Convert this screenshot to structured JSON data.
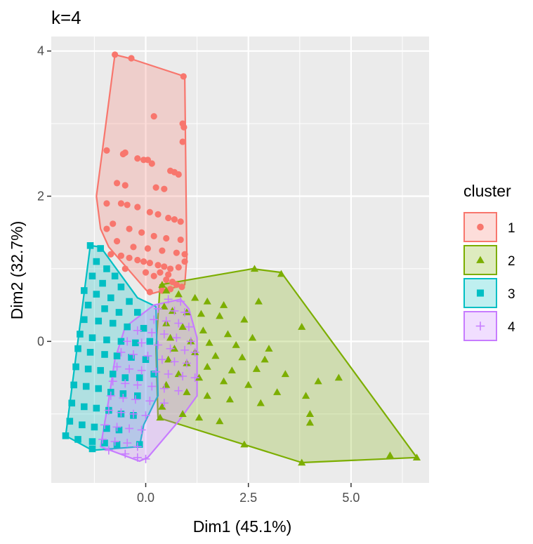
{
  "chart_data": {
    "type": "scatter",
    "title": "k=4",
    "xlabel": "Dim1 (45.1%)",
    "ylabel": "Dim2 (32.7%)",
    "xlim": [
      -2.3,
      6.9
    ],
    "ylim": [
      -1.95,
      4.2
    ],
    "x_ticks": [
      0.0,
      2.5,
      5.0
    ],
    "x_tick_labels": [
      "0.0",
      "2.5",
      "5.0"
    ],
    "y_ticks": [
      0,
      2,
      4
    ],
    "y_tick_labels": [
      "0",
      "2",
      "4"
    ],
    "grid": true,
    "background": "#ebebeb",
    "legend": {
      "title": "cluster",
      "position": "right"
    },
    "series": [
      {
        "name": "1",
        "color": "#f8766d",
        "marker": "circle",
        "hull": [
          [
            -0.75,
            3.95
          ],
          [
            -0.4,
            3.9
          ],
          [
            0.95,
            3.65
          ],
          [
            1.0,
            1.15
          ],
          [
            0.95,
            0.78
          ],
          [
            0.1,
            0.65
          ],
          [
            -0.9,
            1.3
          ],
          [
            -1.1,
            1.55
          ],
          [
            -1.2,
            2.0
          ],
          [
            -1.05,
            2.65
          ]
        ],
        "points": [
          [
            -0.75,
            3.95
          ],
          [
            -0.35,
            3.9
          ],
          [
            0.92,
            3.65
          ],
          [
            0.2,
            3.1
          ],
          [
            0.9,
            3.0
          ],
          [
            0.93,
            2.95
          ],
          [
            -0.5,
            2.6
          ],
          [
            -0.55,
            2.58
          ],
          [
            -0.2,
            2.52
          ],
          [
            -0.05,
            2.5
          ],
          [
            0.05,
            2.5
          ],
          [
            0.15,
            2.45
          ],
          [
            0.6,
            2.35
          ],
          [
            0.7,
            2.33
          ],
          [
            0.8,
            2.3
          ],
          [
            -0.95,
            2.63
          ],
          [
            0.9,
            2.75
          ],
          [
            -0.7,
            2.18
          ],
          [
            -0.5,
            2.15
          ],
          [
            0.25,
            2.12
          ],
          [
            0.45,
            2.1
          ],
          [
            -0.6,
            1.9
          ],
          [
            -0.45,
            1.88
          ],
          [
            -0.2,
            1.85
          ],
          [
            0.1,
            1.78
          ],
          [
            0.3,
            1.75
          ],
          [
            0.55,
            1.7
          ],
          [
            0.7,
            1.68
          ],
          [
            0.85,
            1.65
          ],
          [
            -0.95,
            1.9
          ],
          [
            -0.8,
            1.62
          ],
          [
            -0.4,
            1.55
          ],
          [
            -0.1,
            1.5
          ],
          [
            0.2,
            1.45
          ],
          [
            0.5,
            1.42
          ],
          [
            0.85,
            1.4
          ],
          [
            -0.95,
            1.55
          ],
          [
            -0.7,
            1.38
          ],
          [
            -0.3,
            1.3
          ],
          [
            0.05,
            1.28
          ],
          [
            0.4,
            1.25
          ],
          [
            0.75,
            1.22
          ],
          [
            0.95,
            1.2
          ],
          [
            -0.85,
            1.2
          ],
          [
            -0.6,
            1.18
          ],
          [
            -0.4,
            1.15
          ],
          [
            -0.2,
            1.12
          ],
          [
            -0.05,
            1.1
          ],
          [
            0.1,
            1.08
          ],
          [
            0.3,
            1.05
          ],
          [
            0.45,
            1.03
          ],
          [
            0.6,
            1.0
          ],
          [
            0.8,
            1.02
          ],
          [
            0.95,
            1.1
          ],
          [
            -0.5,
            1.0
          ],
          [
            0.0,
            0.95
          ],
          [
            0.35,
            0.95
          ],
          [
            0.55,
            0.92
          ],
          [
            0.2,
            0.9
          ],
          [
            0.5,
            0.85
          ],
          [
            0.65,
            0.82
          ],
          [
            0.75,
            0.78
          ],
          [
            0.4,
            0.7
          ],
          [
            0.6,
            0.72
          ],
          [
            0.88,
            0.75
          ],
          [
            0.1,
            0.68
          ]
        ]
      },
      {
        "name": "2",
        "color": "#7cae00",
        "marker": "triangle",
        "hull": [
          [
            0.35,
            0.78
          ],
          [
            2.6,
            1.0
          ],
          [
            3.3,
            0.95
          ],
          [
            6.6,
            -1.6
          ],
          [
            3.8,
            -1.67
          ],
          [
            0.3,
            -1.05
          ],
          [
            0.25,
            -0.1
          ]
        ],
        "points": [
          [
            2.65,
            1.0
          ],
          [
            3.3,
            0.93
          ],
          [
            0.4,
            0.78
          ],
          [
            0.5,
            0.7
          ],
          [
            0.8,
            0.65
          ],
          [
            1.2,
            0.6
          ],
          [
            1.5,
            0.55
          ],
          [
            1.9,
            0.5
          ],
          [
            2.75,
            0.55
          ],
          [
            0.45,
            0.48
          ],
          [
            0.65,
            0.42
          ],
          [
            1.0,
            0.4
          ],
          [
            1.35,
            0.38
          ],
          [
            1.8,
            0.35
          ],
          [
            2.4,
            0.3
          ],
          [
            3.8,
            0.2
          ],
          [
            0.5,
            0.25
          ],
          [
            0.9,
            0.2
          ],
          [
            1.4,
            0.15
          ],
          [
            2.0,
            0.1
          ],
          [
            2.6,
            0.05
          ],
          [
            0.6,
            0.05
          ],
          [
            1.1,
            0.0
          ],
          [
            1.55,
            -0.02
          ],
          [
            2.2,
            -0.05
          ],
          [
            3.0,
            -0.1
          ],
          [
            0.7,
            -0.1
          ],
          [
            1.2,
            -0.15
          ],
          [
            1.7,
            -0.2
          ],
          [
            2.35,
            -0.22
          ],
          [
            2.9,
            -0.25
          ],
          [
            0.55,
            -0.25
          ],
          [
            1.0,
            -0.3
          ],
          [
            1.5,
            -0.35
          ],
          [
            2.1,
            -0.4
          ],
          [
            2.7,
            -0.38
          ],
          [
            3.4,
            -0.45
          ],
          [
            4.2,
            -0.55
          ],
          [
            4.7,
            -0.5
          ],
          [
            0.8,
            -0.45
          ],
          [
            1.3,
            -0.5
          ],
          [
            1.9,
            -0.55
          ],
          [
            2.5,
            -0.6
          ],
          [
            3.2,
            -0.7
          ],
          [
            3.9,
            -0.75
          ],
          [
            0.5,
            -0.6
          ],
          [
            1.0,
            -0.7
          ],
          [
            1.5,
            -0.75
          ],
          [
            2.05,
            -0.8
          ],
          [
            2.8,
            -0.85
          ],
          [
            0.4,
            -0.9
          ],
          [
            0.9,
            -1.0
          ],
          [
            1.3,
            -1.05
          ],
          [
            1.8,
            -1.1
          ],
          [
            4.0,
            -1.0
          ],
          [
            0.35,
            -1.05
          ],
          [
            4.0,
            -1.12
          ],
          [
            2.4,
            -1.42
          ],
          [
            3.8,
            -1.67
          ],
          [
            5.95,
            -1.57
          ],
          [
            6.6,
            -1.6
          ]
        ]
      },
      {
        "name": "3",
        "color": "#00bfc4",
        "marker": "square",
        "hull": [
          [
            -1.35,
            1.32
          ],
          [
            -1.1,
            1.3
          ],
          [
            -0.2,
            0.6
          ],
          [
            0.25,
            0.48
          ],
          [
            0.3,
            -0.75
          ],
          [
            0.25,
            -0.8
          ],
          [
            -0.05,
            -1.15
          ],
          [
            -0.15,
            -1.45
          ],
          [
            -1.3,
            -1.5
          ],
          [
            -1.95,
            -1.3
          ]
        ],
        "points": [
          [
            -1.35,
            1.32
          ],
          [
            -1.1,
            1.28
          ],
          [
            -1.2,
            1.1
          ],
          [
            -0.95,
            1.0
          ],
          [
            -0.75,
            0.9
          ],
          [
            -1.3,
            0.9
          ],
          [
            -1.05,
            0.8
          ],
          [
            -0.6,
            0.75
          ],
          [
            -1.5,
            0.7
          ],
          [
            -1.2,
            0.65
          ],
          [
            -0.85,
            0.6
          ],
          [
            -0.4,
            0.55
          ],
          [
            -1.4,
            0.5
          ],
          [
            -1.0,
            0.45
          ],
          [
            -0.65,
            0.4
          ],
          [
            -0.2,
            0.4
          ],
          [
            -1.5,
            0.3
          ],
          [
            -1.15,
            0.28
          ],
          [
            -0.8,
            0.25
          ],
          [
            -0.45,
            0.2
          ],
          [
            -0.05,
            0.18
          ],
          [
            -1.6,
            0.1
          ],
          [
            -1.3,
            0.05
          ],
          [
            -0.95,
            0.02
          ],
          [
            -0.6,
            0.0
          ],
          [
            -0.25,
            -0.02
          ],
          [
            0.1,
            0.0
          ],
          [
            -1.65,
            -0.1
          ],
          [
            -1.35,
            -0.15
          ],
          [
            -1.0,
            -0.18
          ],
          [
            -0.7,
            -0.2
          ],
          [
            -0.35,
            -0.22
          ],
          [
            0.0,
            -0.25
          ],
          [
            -1.7,
            -0.35
          ],
          [
            -1.4,
            -0.38
          ],
          [
            -1.1,
            -0.4
          ],
          [
            -0.8,
            -0.45
          ],
          [
            -0.5,
            -0.5
          ],
          [
            -0.15,
            -0.5
          ],
          [
            0.2,
            -0.45
          ],
          [
            -1.75,
            -0.6
          ],
          [
            -1.45,
            -0.62
          ],
          [
            -1.15,
            -0.65
          ],
          [
            -0.85,
            -0.7
          ],
          [
            -0.55,
            -0.72
          ],
          [
            -0.2,
            -0.75
          ],
          [
            -1.8,
            -0.85
          ],
          [
            -1.5,
            -0.9
          ],
          [
            -1.2,
            -0.92
          ],
          [
            -0.9,
            -0.95
          ],
          [
            -0.6,
            -1.0
          ],
          [
            -0.3,
            -1.02
          ],
          [
            -1.85,
            -1.1
          ],
          [
            -1.55,
            -1.15
          ],
          [
            -1.25,
            -1.18
          ],
          [
            -0.95,
            -1.2
          ],
          [
            -0.65,
            -1.22
          ],
          [
            -1.95,
            -1.3
          ],
          [
            -1.65,
            -1.35
          ],
          [
            -1.3,
            -1.38
          ],
          [
            -1.0,
            -1.4
          ],
          [
            -0.7,
            -1.42
          ],
          [
            -0.15,
            -1.42
          ],
          [
            -1.3,
            -1.48
          ]
        ]
      },
      {
        "name": "4",
        "color": "#c77cff",
        "marker": "plus",
        "hull": [
          [
            0.2,
            0.5
          ],
          [
            0.85,
            0.58
          ],
          [
            1.05,
            0.45
          ],
          [
            1.25,
            0.05
          ],
          [
            1.25,
            -0.75
          ],
          [
            0.8,
            -1.1
          ],
          [
            0.05,
            -1.6
          ],
          [
            -0.15,
            -1.65
          ],
          [
            -1.1,
            -1.45
          ],
          [
            -0.9,
            -0.8
          ],
          [
            -0.75,
            -0.25
          ],
          [
            -0.5,
            0.2
          ]
        ],
        "points": [
          [
            0.55,
            0.58
          ],
          [
            0.85,
            0.55
          ],
          [
            0.3,
            0.45
          ],
          [
            0.7,
            0.42
          ],
          [
            0.95,
            0.4
          ],
          [
            0.2,
            0.3
          ],
          [
            0.5,
            0.28
          ],
          [
            0.8,
            0.25
          ],
          [
            1.05,
            0.2
          ],
          [
            -0.2,
            0.15
          ],
          [
            0.15,
            0.12
          ],
          [
            0.45,
            0.1
          ],
          [
            0.75,
            0.05
          ],
          [
            1.1,
            0.0
          ],
          [
            -0.45,
            0.0
          ],
          [
            -0.1,
            -0.02
          ],
          [
            0.3,
            -0.05
          ],
          [
            0.6,
            -0.1
          ],
          [
            0.95,
            -0.12
          ],
          [
            1.2,
            -0.15
          ],
          [
            -0.6,
            -0.15
          ],
          [
            -0.3,
            -0.18
          ],
          [
            0.05,
            -0.2
          ],
          [
            0.4,
            -0.25
          ],
          [
            0.7,
            -0.28
          ],
          [
            1.0,
            -0.3
          ],
          [
            -0.7,
            -0.35
          ],
          [
            -0.4,
            -0.38
          ],
          [
            -0.1,
            -0.4
          ],
          [
            0.25,
            -0.42
          ],
          [
            0.55,
            -0.45
          ],
          [
            0.9,
            -0.48
          ],
          [
            1.2,
            -0.5
          ],
          [
            -0.8,
            -0.55
          ],
          [
            -0.5,
            -0.58
          ],
          [
            -0.2,
            -0.6
          ],
          [
            0.15,
            -0.62
          ],
          [
            0.45,
            -0.65
          ],
          [
            0.8,
            -0.68
          ],
          [
            -0.85,
            -0.75
          ],
          [
            -0.55,
            -0.78
          ],
          [
            -0.25,
            -0.8
          ],
          [
            0.1,
            -0.82
          ],
          [
            0.45,
            -0.85
          ],
          [
            -0.9,
            -0.95
          ],
          [
            -0.6,
            -0.98
          ],
          [
            -0.3,
            -1.0
          ],
          [
            0.0,
            -1.02
          ],
          [
            -1.0,
            -1.15
          ],
          [
            -0.7,
            -1.18
          ],
          [
            -0.4,
            -1.2
          ],
          [
            -0.1,
            -1.22
          ],
          [
            -1.05,
            -1.35
          ],
          [
            -0.75,
            -1.38
          ],
          [
            -0.45,
            -1.4
          ],
          [
            -0.2,
            -1.45
          ],
          [
            -0.9,
            -1.5
          ],
          [
            -0.5,
            -1.55
          ],
          [
            -0.2,
            -1.6
          ],
          [
            0.0,
            -1.62
          ]
        ]
      }
    ]
  }
}
